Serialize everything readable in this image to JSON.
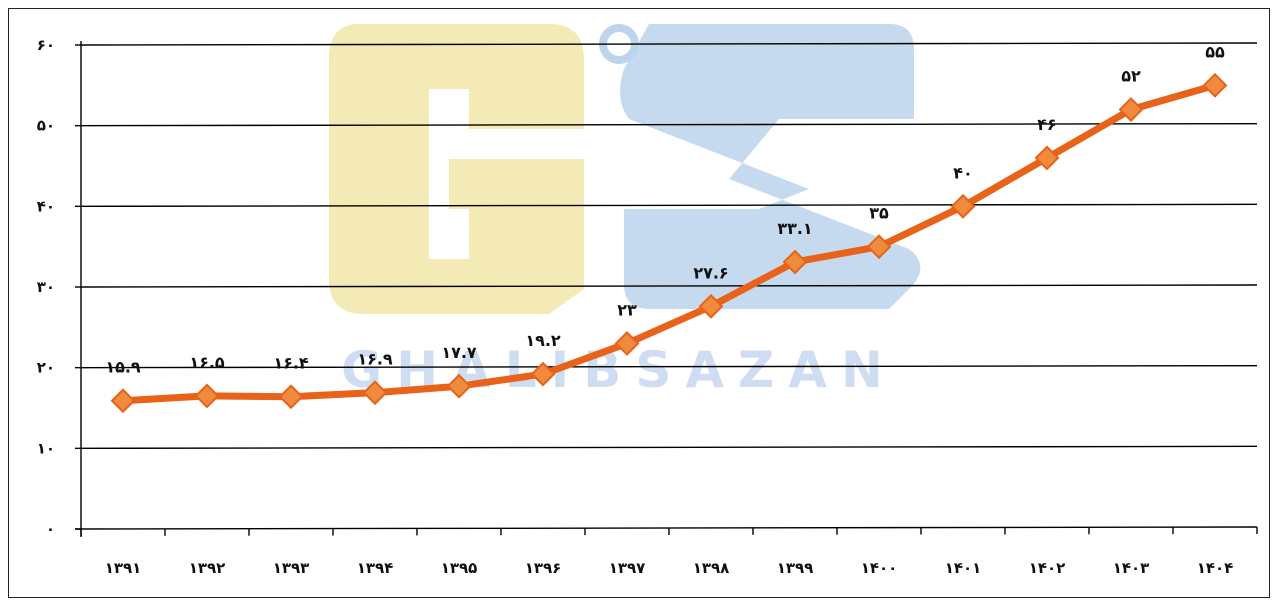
{
  "chart_data": {
    "type": "line",
    "title": "",
    "xlabel": "",
    "ylabel": "",
    "categories": [
      "۱۳۹۱",
      "۱۳۹۲",
      "۱۳۹۳",
      "۱۳۹۴",
      "۱۳۹۵",
      "۱۳۹۶",
      "۱۳۹۷",
      "۱۳۹۸",
      "۱۳۹۹",
      "۱۴۰۰",
      "۱۴۰۱",
      "۱۴۰۲",
      "۱۴۰۳",
      "۱۴۰۴"
    ],
    "values": [
      15.9,
      16.5,
      16.4,
      16.9,
      17.7,
      19.2,
      23,
      27.6,
      33.1,
      35,
      40,
      46,
      52,
      55
    ],
    "value_labels": [
      "۱۵.۹",
      "۱۶.۵",
      "۱۶.۴",
      "۱۶.۹",
      "۱۷.۷",
      "۱۹.۲",
      "۲۳",
      "۲۷.۶",
      "۳۳.۱",
      "۳۵",
      "۴۰",
      "۴۶",
      "۵۲",
      "۵۵"
    ],
    "ylim": [
      0,
      60
    ],
    "yticks": [
      0,
      10,
      20,
      30,
      40,
      50,
      60
    ],
    "ytick_labels": [
      "۰",
      "۱۰",
      "۲۰",
      "۳۰",
      "۴۰",
      "۵۰",
      "۶۰"
    ],
    "grid": true,
    "marker": "diamond",
    "colors": {
      "line": "#e8621a",
      "marker": "#f08a3c",
      "grid": "#000000"
    }
  },
  "watermark": {
    "text": "GHALIBSAZAN",
    "colors": {
      "g": "#f2e6a8",
      "s": "#bcd4ec",
      "text": "#c9daf0"
    }
  }
}
